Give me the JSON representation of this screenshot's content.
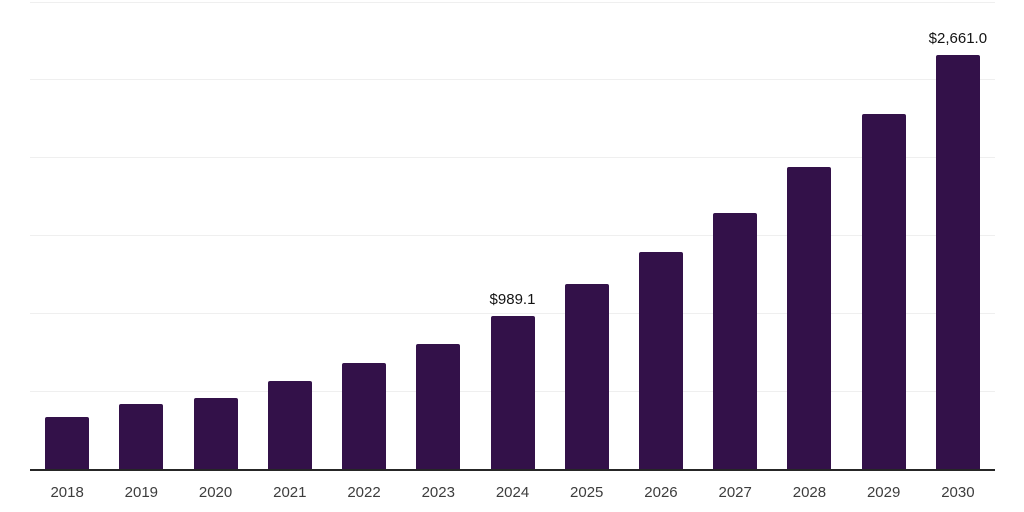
{
  "chart_data": {
    "type": "bar",
    "title": "",
    "xlabel": "",
    "ylabel": "",
    "categories": [
      "2018",
      "2019",
      "2020",
      "2021",
      "2022",
      "2023",
      "2024",
      "2025",
      "2026",
      "2027",
      "2028",
      "2029",
      "2030"
    ],
    "values": [
      340,
      420,
      460,
      570,
      685,
      810,
      989.1,
      1190,
      1395,
      1645,
      1945,
      2285,
      2661
    ],
    "annotations": [
      {
        "index": 6,
        "text": "$989.1"
      },
      {
        "index": 12,
        "text": "$2,661.0"
      }
    ],
    "ylim": [
      0,
      3000
    ],
    "gridline_step": 500,
    "grid": true,
    "legend": false,
    "y_axis_labels_visible": false
  },
  "colors": {
    "bar": "#331149",
    "axis_line": "#262626",
    "gridline": "#efefef",
    "tick_label": "#3d3d3d",
    "data_label": "#131313",
    "background": "#ffffff"
  }
}
